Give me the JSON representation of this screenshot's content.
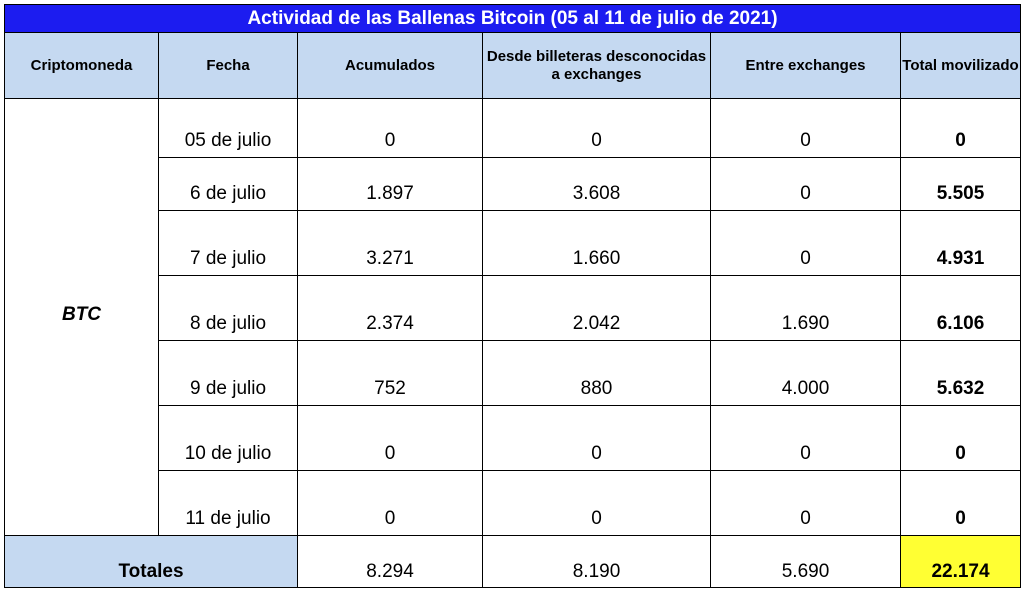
{
  "table": {
    "title": "Actividad de las Ballenas Bitcoin (05 al 11 de julio de 2021)",
    "columns": [
      "Criptomoneda",
      "Fecha",
      "Acumulados",
      "Desde billeteras desconocidas a exchanges",
      "Entre exchanges",
      "Total movilizado"
    ],
    "crypto": "BTC",
    "rows": [
      [
        "05 de julio",
        "0",
        "0",
        "0",
        "0"
      ],
      [
        "6 de julio",
        "1.897",
        "3.608",
        "0",
        "5.505"
      ],
      [
        "7 de julio",
        "3.271",
        "1.660",
        "0",
        "4.931"
      ],
      [
        "8 de julio",
        "2.374",
        "2.042",
        "1.690",
        "6.106"
      ],
      [
        "9 de julio",
        "752",
        "880",
        "4.000",
        "5.632"
      ],
      [
        "10 de julio",
        "0",
        "0",
        "0",
        "0"
      ],
      [
        "11 de julio",
        "0",
        "0",
        "0",
        "0"
      ]
    ],
    "totals_label": "Totales",
    "totals": [
      "8.294",
      "8.190",
      "5.690",
      "22.174"
    ]
  }
}
